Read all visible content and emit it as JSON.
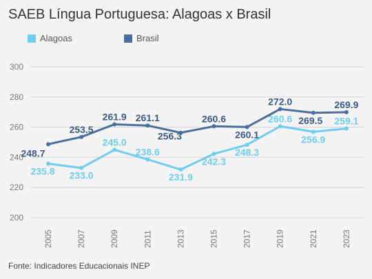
{
  "chart_data": {
    "type": "line",
    "title": "SAEB Língua Portuguesa: Alagoas x Brasil",
    "xlabel": "",
    "ylabel": "",
    "categories": [
      "2005",
      "2007",
      "2009",
      "2011",
      "2013",
      "2015",
      "2017",
      "2019",
      "2021",
      "2023"
    ],
    "yticks": [
      "200",
      "220",
      "240",
      "260",
      "280",
      "300"
    ],
    "ylim": [
      200,
      300
    ],
    "grid": true,
    "legend_position": "top-left",
    "series": [
      {
        "name": "Alagoas",
        "color": "#6fcdf0",
        "values": [
          235.8,
          233.0,
          245.0,
          238.6,
          231.9,
          242.3,
          248.3,
          260.6,
          256.9,
          259.1
        ],
        "labels": [
          "235.8",
          "233.0",
          "245.0",
          "238.6",
          "231.9",
          "242.3",
          "248.3",
          "260.6",
          "256.9",
          "259.1"
        ]
      },
      {
        "name": "Brasil",
        "color": "#4a6e9e",
        "values": [
          248.7,
          253.5,
          261.9,
          261.1,
          256.3,
          260.6,
          260.1,
          272.0,
          269.5,
          269.9
        ],
        "labels": [
          "248.7",
          "253.5",
          "261.9",
          "261.1",
          "256.3",
          "260.6",
          "260.1",
          "272.0",
          "269.5",
          "269.9"
        ]
      }
    ]
  },
  "footer": {
    "source": "Fonte: Indicadores Educacionais INEP"
  }
}
